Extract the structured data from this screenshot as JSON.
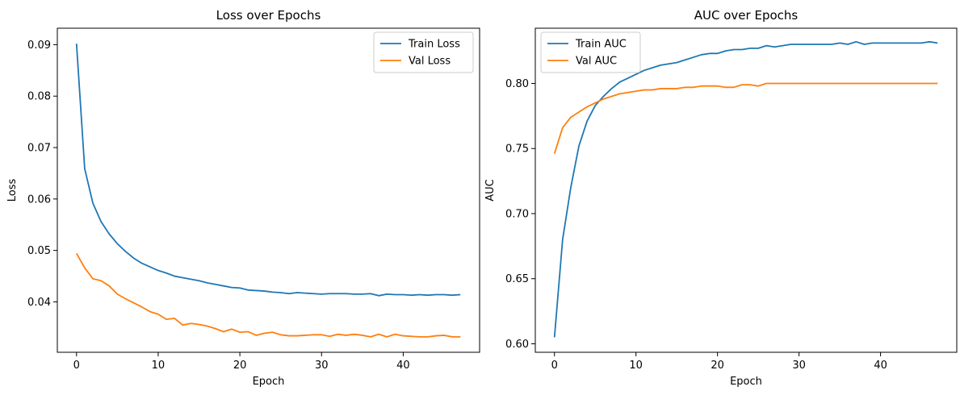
{
  "chart_data": [
    {
      "type": "line",
      "title": "Loss over Epochs",
      "xlabel": "Epoch",
      "ylabel": "Loss",
      "xlim": [
        -2.35,
        49.35
      ],
      "ylim": [
        0.0302,
        0.0932
      ],
      "xticks": [
        0,
        10,
        20,
        30,
        40
      ],
      "xtick_labels": [
        "0",
        "10",
        "20",
        "30",
        "40"
      ],
      "yticks": [
        0.04,
        0.05,
        0.06,
        0.07,
        0.08,
        0.09
      ],
      "ytick_labels": [
        "0.04",
        "0.05",
        "0.06",
        "0.07",
        "0.08",
        "0.09"
      ],
      "grid": false,
      "legend_position": "top-right",
      "x": [
        0,
        1,
        2,
        3,
        4,
        5,
        6,
        7,
        8,
        9,
        10,
        11,
        12,
        13,
        14,
        15,
        16,
        17,
        18,
        19,
        20,
        21,
        22,
        23,
        24,
        25,
        26,
        27,
        28,
        29,
        30,
        31,
        32,
        33,
        34,
        35,
        36,
        37,
        38,
        39,
        40,
        41,
        42,
        43,
        44,
        45,
        46,
        47
      ],
      "series": [
        {
          "name": "Train Loss",
          "color": "#1f77b4",
          "values": [
            0.0902,
            0.0659,
            0.0592,
            0.0556,
            0.0532,
            0.0513,
            0.0498,
            0.0485,
            0.0475,
            0.0468,
            0.0461,
            0.0456,
            0.045,
            0.0447,
            0.0444,
            0.0441,
            0.0437,
            0.0434,
            0.0431,
            0.0428,
            0.0427,
            0.0423,
            0.0422,
            0.0421,
            0.0419,
            0.0418,
            0.0416,
            0.0418,
            0.0417,
            0.0416,
            0.0415,
            0.0416,
            0.0416,
            0.0416,
            0.0415,
            0.0415,
            0.0416,
            0.0412,
            0.0415,
            0.0414,
            0.0414,
            0.0413,
            0.0414,
            0.0413,
            0.0414,
            0.0414,
            0.0413,
            0.0414
          ]
        },
        {
          "name": "Val Loss",
          "color": "#ff7f0e",
          "values": [
            0.0494,
            0.0466,
            0.0445,
            0.0441,
            0.0431,
            0.0415,
            0.0406,
            0.0398,
            0.039,
            0.0381,
            0.0376,
            0.0366,
            0.0368,
            0.0355,
            0.0358,
            0.0356,
            0.0353,
            0.0348,
            0.0342,
            0.0347,
            0.0341,
            0.0342,
            0.0335,
            0.0339,
            0.0341,
            0.0336,
            0.0334,
            0.0334,
            0.0335,
            0.0336,
            0.0336,
            0.0333,
            0.0337,
            0.0335,
            0.0337,
            0.0335,
            0.0332,
            0.0337,
            0.0332,
            0.0337,
            0.0334,
            0.0333,
            0.0332,
            0.0332,
            0.0334,
            0.0335,
            0.0332,
            0.0332
          ]
        }
      ]
    },
    {
      "type": "line",
      "title": "AUC over Epochs",
      "xlabel": "Epoch",
      "ylabel": "AUC",
      "xlim": [
        -2.35,
        49.35
      ],
      "ylim": [
        0.5935,
        0.8424
      ],
      "xticks": [
        0,
        10,
        20,
        30,
        40
      ],
      "xtick_labels": [
        "0",
        "10",
        "20",
        "30",
        "40"
      ],
      "yticks": [
        0.6,
        0.65,
        0.7,
        0.75,
        0.8
      ],
      "ytick_labels": [
        "0.60",
        "0.65",
        "0.70",
        "0.75",
        "0.80"
      ],
      "grid": false,
      "legend_position": "top-left",
      "x": [
        0,
        1,
        2,
        3,
        4,
        5,
        6,
        7,
        8,
        9,
        10,
        11,
        12,
        13,
        14,
        15,
        16,
        17,
        18,
        19,
        20,
        21,
        22,
        23,
        24,
        25,
        26,
        27,
        28,
        29,
        30,
        31,
        32,
        33,
        34,
        35,
        36,
        37,
        38,
        39,
        40,
        41,
        42,
        43,
        44,
        45,
        46,
        47
      ],
      "series": [
        {
          "name": "Train AUC",
          "color": "#1f77b4",
          "values": [
            0.605,
            0.68,
            0.72,
            0.752,
            0.771,
            0.783,
            0.79,
            0.796,
            0.801,
            0.804,
            0.807,
            0.81,
            0.812,
            0.814,
            0.815,
            0.816,
            0.818,
            0.82,
            0.822,
            0.823,
            0.823,
            0.825,
            0.826,
            0.826,
            0.827,
            0.827,
            0.829,
            0.828,
            0.829,
            0.83,
            0.83,
            0.83,
            0.83,
            0.83,
            0.83,
            0.831,
            0.83,
            0.832,
            0.83,
            0.831,
            0.831,
            0.831,
            0.831,
            0.831,
            0.831,
            0.831,
            0.832,
            0.831
          ]
        },
        {
          "name": "Val AUC",
          "color": "#ff7f0e",
          "values": [
            0.746,
            0.766,
            0.774,
            0.778,
            0.782,
            0.785,
            0.788,
            0.79,
            0.792,
            0.793,
            0.794,
            0.795,
            0.795,
            0.796,
            0.796,
            0.796,
            0.797,
            0.797,
            0.798,
            0.798,
            0.798,
            0.797,
            0.797,
            0.799,
            0.799,
            0.798,
            0.8,
            0.8,
            0.8,
            0.8,
            0.8,
            0.8,
            0.8,
            0.8,
            0.8,
            0.8,
            0.8,
            0.8,
            0.8,
            0.8,
            0.8,
            0.8,
            0.8,
            0.8,
            0.8,
            0.8,
            0.8,
            0.8
          ]
        }
      ]
    }
  ]
}
